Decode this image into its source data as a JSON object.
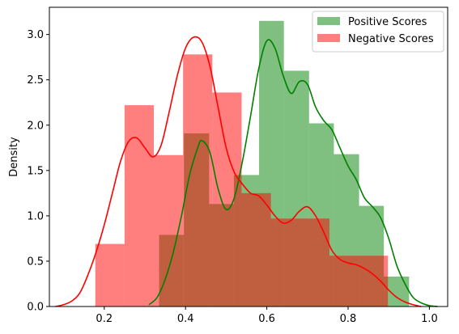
{
  "chart_data": {
    "type": "bar",
    "title": "",
    "xlabel": "",
    "ylabel": "Density",
    "xlim": [
      0.065,
      1.045
    ],
    "ylim": [
      0,
      3.3
    ],
    "xticks": [
      0.2,
      0.4,
      0.6,
      0.8,
      1.0
    ],
    "xtick_labels": [
      "0.2",
      "0.4",
      "0.6",
      "0.8",
      "1.0"
    ],
    "yticks": [
      0.0,
      0.5,
      1.0,
      1.5,
      2.0,
      2.5,
      3.0
    ],
    "ytick_labels": [
      "0.0",
      "0.5",
      "1.0",
      "1.5",
      "2.0",
      "2.5",
      "3.0"
    ],
    "grid": false,
    "legend_position": "top-right",
    "series": [
      {
        "name": "Positive Scores",
        "kind": "histogram",
        "color": "#008000",
        "opacity": 0.5,
        "bin_edges": [
          0.335,
          0.396,
          0.458,
          0.519,
          0.581,
          0.642,
          0.704,
          0.765,
          0.827,
          0.888,
          0.95
        ],
        "density": [
          0.79,
          1.91,
          1.13,
          1.45,
          3.15,
          2.6,
          2.02,
          1.68,
          1.11,
          0.33
        ],
        "kde": {
          "x": [
            0.31,
            0.33,
            0.35,
            0.37,
            0.39,
            0.41,
            0.43,
            0.44,
            0.46,
            0.48,
            0.5,
            0.52,
            0.54,
            0.56,
            0.58,
            0.6,
            0.62,
            0.64,
            0.66,
            0.68,
            0.7,
            0.72,
            0.74,
            0.76,
            0.78,
            0.8,
            0.82,
            0.84,
            0.86,
            0.88,
            0.9,
            0.92,
            0.94,
            0.96,
            0.98,
            1.0,
            1.02
          ],
          "y": [
            0.02,
            0.1,
            0.3,
            0.6,
            1.0,
            1.45,
            1.75,
            1.83,
            1.7,
            1.3,
            1.07,
            1.2,
            1.6,
            2.1,
            2.62,
            2.93,
            2.85,
            2.55,
            2.35,
            2.48,
            2.45,
            2.2,
            2.05,
            1.95,
            1.75,
            1.55,
            1.4,
            1.2,
            1.1,
            0.98,
            0.75,
            0.45,
            0.25,
            0.1,
            0.04,
            0.01,
            0.0
          ]
        }
      },
      {
        "name": "Negative Scores",
        "kind": "histogram",
        "color": "#ff0000",
        "opacity": 0.5,
        "bin_edges": [
          0.178,
          0.25,
          0.322,
          0.394,
          0.466,
          0.538,
          0.61,
          0.682,
          0.754,
          0.826,
          0.898
        ],
        "density": [
          0.69,
          2.22,
          1.67,
          2.78,
          2.36,
          1.25,
          0.97,
          0.97,
          0.56,
          0.56
        ],
        "kde": {
          "x": [
            0.08,
            0.1,
            0.12,
            0.14,
            0.16,
            0.18,
            0.2,
            0.22,
            0.24,
            0.26,
            0.28,
            0.3,
            0.32,
            0.34,
            0.36,
            0.38,
            0.4,
            0.42,
            0.44,
            0.46,
            0.48,
            0.5,
            0.52,
            0.54,
            0.56,
            0.58,
            0.6,
            0.62,
            0.64,
            0.66,
            0.68,
            0.7,
            0.72,
            0.74,
            0.76,
            0.78,
            0.8,
            0.82,
            0.84,
            0.86,
            0.88,
            0.9,
            0.92,
            0.94,
            0.96,
            0.98
          ],
          "y": [
            0.0,
            0.02,
            0.06,
            0.15,
            0.35,
            0.6,
            0.9,
            1.25,
            1.6,
            1.82,
            1.86,
            1.75,
            1.65,
            1.78,
            2.15,
            2.55,
            2.85,
            2.97,
            2.92,
            2.65,
            2.2,
            1.75,
            1.48,
            1.35,
            1.25,
            1.22,
            1.12,
            1.0,
            0.92,
            0.95,
            1.05,
            1.1,
            1.0,
            0.82,
            0.62,
            0.52,
            0.48,
            0.46,
            0.42,
            0.36,
            0.28,
            0.18,
            0.1,
            0.05,
            0.02,
            0.0
          ]
        }
      }
    ]
  }
}
